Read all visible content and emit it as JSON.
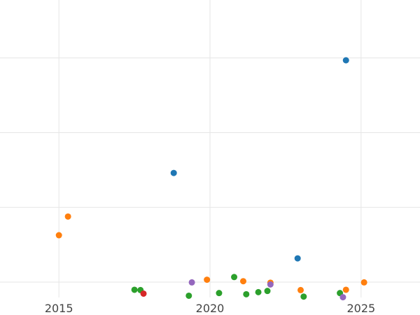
{
  "chart_data": {
    "type": "scatter",
    "title": "",
    "xlabel": "",
    "ylabel": "",
    "xlim": [
      2013.05,
      2026.95
    ],
    "ylim": [
      0,
      100
    ],
    "x_ticks": [
      2015,
      2020,
      2025
    ],
    "x_tick_labels": [
      "2015",
      "2020",
      "2025"
    ],
    "y_gridlines": [
      5.2,
      30.4,
      55.6,
      80.8,
      105.9
    ],
    "grid": true,
    "legend": "none",
    "series": [
      {
        "color": "#1f77b4",
        "points": [
          {
            "x": 2018.8,
            "y": 42.0
          },
          {
            "x": 2022.9,
            "y": 13.2
          },
          {
            "x": 2024.5,
            "y": 80.0
          }
        ]
      },
      {
        "color": "#ff7f0e",
        "points": [
          {
            "x": 2015.0,
            "y": 21.0
          },
          {
            "x": 2015.3,
            "y": 27.3
          },
          {
            "x": 2019.9,
            "y": 6.0
          },
          {
            "x": 2021.1,
            "y": 5.5
          },
          {
            "x": 2022.0,
            "y": 5.0
          },
          {
            "x": 2023.0,
            "y": 2.5
          },
          {
            "x": 2024.5,
            "y": 2.6
          },
          {
            "x": 2025.1,
            "y": 5.1
          }
        ]
      },
      {
        "color": "#2ca02c",
        "points": [
          {
            "x": 2017.5,
            "y": 2.6
          },
          {
            "x": 2017.7,
            "y": 2.5
          },
          {
            "x": 2019.3,
            "y": 0.6
          },
          {
            "x": 2020.3,
            "y": 1.5
          },
          {
            "x": 2020.8,
            "y": 6.9
          },
          {
            "x": 2021.2,
            "y": 1.1
          },
          {
            "x": 2021.6,
            "y": 1.8
          },
          {
            "x": 2021.9,
            "y": 2.2
          },
          {
            "x": 2023.1,
            "y": 0.3
          },
          {
            "x": 2024.3,
            "y": 1.5
          }
        ]
      },
      {
        "color": "#d62728",
        "points": [
          {
            "x": 2017.8,
            "y": 1.3
          }
        ]
      },
      {
        "color": "#9467bd",
        "points": [
          {
            "x": 2019.4,
            "y": 5.1
          },
          {
            "x": 2022.0,
            "y": 4.4
          },
          {
            "x": 2024.4,
            "y": 0.1
          }
        ]
      }
    ]
  }
}
